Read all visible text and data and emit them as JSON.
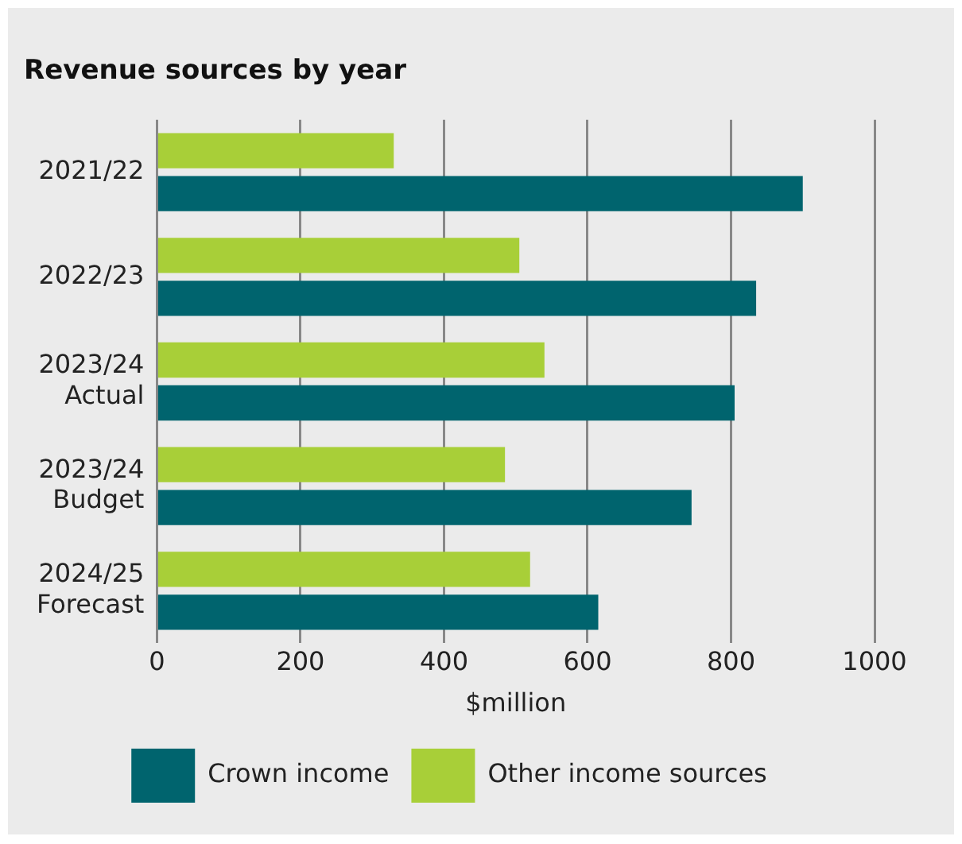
{
  "chart_data": {
    "type": "bar",
    "orientation": "horizontal",
    "title": "Revenue sources by year",
    "xlabel": "$million",
    "categories": [
      "2021/22",
      "2022/23",
      "2023/24 Actual",
      "2023/24 Budget",
      "2024/25 Forecast"
    ],
    "series": [
      {
        "name": "Other income sources",
        "color": "#a8cf38",
        "values": [
          330,
          505,
          540,
          485,
          520
        ]
      },
      {
        "name": "Crown income",
        "color": "#00646e",
        "values": [
          900,
          835,
          805,
          745,
          615
        ]
      }
    ],
    "xlim": [
      0,
      1000
    ],
    "xticks": [
      0,
      200,
      400,
      600,
      800,
      1000
    ],
    "grid": "x",
    "legend": "bottom"
  }
}
